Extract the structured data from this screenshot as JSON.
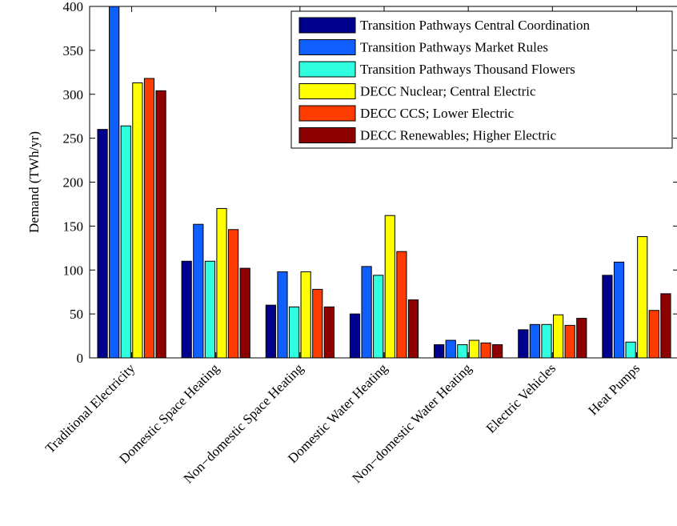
{
  "chart_data": {
    "type": "bar",
    "title": "",
    "xlabel": "",
    "ylabel": "Demand (TWh/yr)",
    "ylim": [
      0,
      400
    ],
    "yticks": [
      0,
      50,
      100,
      150,
      200,
      250,
      300,
      350,
      400
    ],
    "grid": false,
    "legend_position": "top-right",
    "categories": [
      "Traditional Electricity",
      "Domestic Space Heating",
      "Non−domestic Space Heating",
      "Domestic Water Heating",
      "Non−domestic Water Heating",
      "Electric Vehicles",
      "Heat Pumps"
    ],
    "series": [
      {
        "name": "Transition Pathways Central Coordination",
        "color": "#00008f",
        "values": [
          260,
          110,
          60,
          50,
          15,
          32,
          94
        ]
      },
      {
        "name": "Transition Pathways Market Rules",
        "color": "#0f5fff",
        "values": [
          400,
          152,
          98,
          104,
          20,
          38,
          109
        ]
      },
      {
        "name": "Transition Pathways Thousand Flowers",
        "color": "#30ffdf",
        "values": [
          264,
          110,
          58,
          94,
          15,
          38,
          18
        ]
      },
      {
        "name": "DECC Nuclear; Central Electric",
        "color": "#ffff00",
        "values": [
          313,
          170,
          98,
          162,
          20,
          49,
          138
        ]
      },
      {
        "name": "DECC CCS; Lower Electric",
        "color": "#ff3c00",
        "values": [
          318,
          146,
          78,
          121,
          17,
          37,
          54
        ]
      },
      {
        "name": "DECC Renewables; Higher Electric",
        "color": "#8f0000",
        "values": [
          304,
          102,
          58,
          66,
          15,
          45,
          73
        ]
      }
    ]
  }
}
